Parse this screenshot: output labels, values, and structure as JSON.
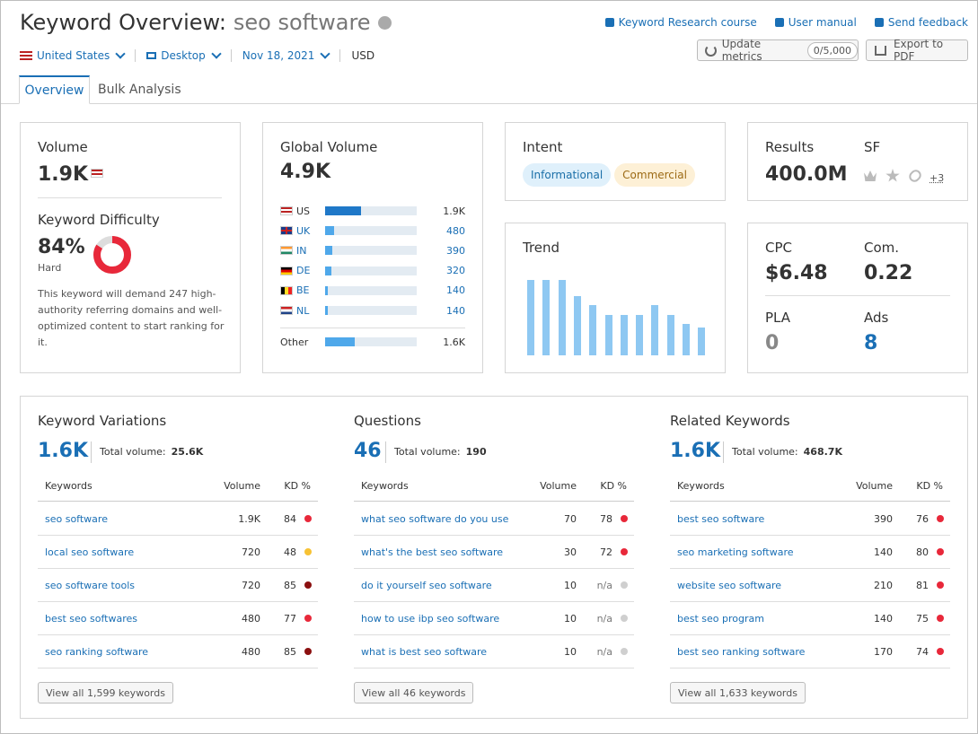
{
  "header": {
    "title": "Keyword Overview:",
    "keyword": "seo software",
    "links": [
      "Keyword Research course",
      "User manual",
      "Send feedback"
    ],
    "filters": [
      "United States",
      "Desktop",
      "Nov 18, 2021",
      "USD"
    ],
    "update_button": "Update metrics",
    "quota": "0/5,000",
    "export_button": "Export to PDF"
  },
  "tabs": [
    "Overview",
    "Bulk Analysis"
  ],
  "volume": {
    "label": "Volume",
    "value": "1.9K"
  },
  "difficulty": {
    "label": "Keyword Difficulty",
    "value": 84,
    "value_label": "84%",
    "level": "Hard",
    "color": "#e8283a",
    "description": "This keyword will demand 247 high-authority referring domains and well-optimized content to start ranking for it."
  },
  "global_volume": {
    "label": "Global Volume",
    "total": 4900,
    "total_label": "4.9K",
    "countries": [
      "US",
      "UK",
      "IN",
      "DE",
      "BE",
      "NL"
    ],
    "values": [
      1900,
      480,
      390,
      320,
      140,
      140
    ],
    "value_labels": [
      "1.9K",
      "480",
      "390",
      "320",
      "140",
      "140"
    ],
    "colors": [
      "#1f78c8",
      "#4fa8ea",
      "#4fa8ea",
      "#4fa8ea",
      "#4fa8ea",
      "#4fa8ea"
    ],
    "other": {
      "label": "Other",
      "value": 1600,
      "value_label": "1.6K",
      "color": "#4fa8ea"
    }
  },
  "intent": {
    "label": "Intent",
    "tags": [
      "Informational",
      "Commercial"
    ]
  },
  "results": {
    "label": "Results",
    "value": "400.0M",
    "sf_label": "SF",
    "sf_more": "+3"
  },
  "trend": {
    "type": "bar",
    "label": "Trend",
    "values": [
      1,
      1,
      1,
      0.79,
      0.67,
      0.54,
      0.54,
      0.54,
      0.67,
      0.54,
      0.42,
      0.37
    ],
    "ylim": [
      0,
      1
    ],
    "color": "#8ec8f2"
  },
  "metrics": [
    {
      "label": "CPC",
      "value": "$6.48"
    },
    {
      "label": "Com.",
      "value": "0.22"
    },
    {
      "label": "PLA",
      "value": "0"
    },
    {
      "label": "Ads",
      "value": "8"
    }
  ],
  "sections": [
    {
      "title": "Keyword Variations",
      "count": "1.6K",
      "total_label": "Total volume:",
      "total": "25.6K",
      "columns": [
        "Keywords",
        "Volume",
        "KD %"
      ],
      "rows": [
        {
          "keyword": "seo software",
          "volume": "1.9K",
          "kd": "84",
          "kd_color": "#e8283a"
        },
        {
          "keyword": "local seo software",
          "volume": "720",
          "kd": "48",
          "kd_color": "#f7c234"
        },
        {
          "keyword": "seo software tools",
          "volume": "720",
          "kd": "85",
          "kd_color": "#8b1010"
        },
        {
          "keyword": "best seo softwares",
          "volume": "480",
          "kd": "77",
          "kd_color": "#e8283a"
        },
        {
          "keyword": "seo ranking software",
          "volume": "480",
          "kd": "85",
          "kd_color": "#8b1010"
        }
      ],
      "button": "View all 1,599 keywords"
    },
    {
      "title": "Questions",
      "count": "46",
      "total_label": "Total volume:",
      "total": "190",
      "columns": [
        "Keywords",
        "Volume",
        "KD %"
      ],
      "rows": [
        {
          "keyword": "what seo software do you use",
          "volume": "70",
          "kd": "78",
          "kd_color": "#e8283a"
        },
        {
          "keyword": "what's the best seo software",
          "volume": "30",
          "kd": "72",
          "kd_color": "#e8283a"
        },
        {
          "keyword": "do it yourself seo software",
          "volume": "10",
          "kd": "n/a",
          "kd_color": "#cfcfcf"
        },
        {
          "keyword": "how to use ibp seo software",
          "volume": "10",
          "kd": "n/a",
          "kd_color": "#cfcfcf"
        },
        {
          "keyword": "what is best seo software",
          "volume": "10",
          "kd": "n/a",
          "kd_color": "#cfcfcf"
        }
      ],
      "button": "View all 46 keywords"
    },
    {
      "title": "Related Keywords",
      "count": "1.6K",
      "total_label": "Total volume:",
      "total": "468.7K",
      "columns": [
        "Keywords",
        "Volume",
        "KD %"
      ],
      "rows": [
        {
          "keyword": "best seo software",
          "volume": "390",
          "kd": "76",
          "kd_color": "#e8283a"
        },
        {
          "keyword": "seo marketing software",
          "volume": "140",
          "kd": "80",
          "kd_color": "#e8283a"
        },
        {
          "keyword": "website seo software",
          "volume": "210",
          "kd": "81",
          "kd_color": "#e8283a"
        },
        {
          "keyword": "best seo program",
          "volume": "140",
          "kd": "75",
          "kd_color": "#e8283a"
        },
        {
          "keyword": "best seo ranking software",
          "volume": "170",
          "kd": "74",
          "kd_color": "#e8283a"
        }
      ],
      "button": "View all 1,633 keywords"
    }
  ]
}
